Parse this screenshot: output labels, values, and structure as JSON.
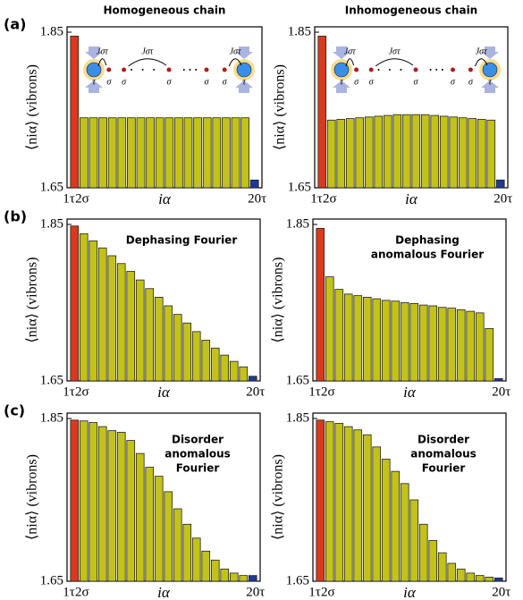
{
  "chart_data": [
    {
      "type": "bar",
      "panel_label": "(a)",
      "title": "Homogeneous chain",
      "categories": [
        "1τ",
        "2σ",
        null,
        null,
        null,
        null,
        null,
        null,
        null,
        null,
        null,
        null,
        null,
        null,
        null,
        null,
        null,
        null,
        null,
        "20τ"
      ],
      "values": [
        1.845,
        1.74,
        1.74,
        1.74,
        1.74,
        1.74,
        1.74,
        1.74,
        1.74,
        1.74,
        1.74,
        1.74,
        1.74,
        1.74,
        1.74,
        1.74,
        1.74,
        1.74,
        1.74,
        1.66
      ],
      "colors": [
        "#d93a1c",
        "#c2c21a",
        "#c2c21a",
        "#c2c21a",
        "#c2c21a",
        "#c2c21a",
        "#c2c21a",
        "#c2c21a",
        "#c2c21a",
        "#c2c21a",
        "#c2c21a",
        "#c2c21a",
        "#c2c21a",
        "#c2c21a",
        "#c2c21a",
        "#c2c21a",
        "#c2c21a",
        "#c2c21a",
        "#c2c21a",
        "#1f3a93"
      ],
      "xlabel": "iα",
      "ylabel": "⟨niα⟩ (vibrons)",
      "ylim": [
        1.65,
        1.85
      ],
      "yticks": [
        1.65,
        1.85
      ],
      "inset": {
        "coupling": "Jστ",
        "site_labels": [
          "τ",
          "σ",
          "σ",
          "σ",
          "σ",
          "σ",
          "τ"
        ]
      }
    },
    {
      "type": "bar",
      "title": "Inhomogeneous chain",
      "categories": [
        "1τ",
        "2σ",
        null,
        null,
        null,
        null,
        null,
        null,
        null,
        null,
        null,
        null,
        null,
        null,
        null,
        null,
        null,
        null,
        null,
        "20τ"
      ],
      "values": [
        1.845,
        1.737,
        1.738,
        1.739,
        1.74,
        1.741,
        1.742,
        1.743,
        1.744,
        1.744,
        1.744,
        1.744,
        1.743,
        1.742,
        1.741,
        1.74,
        1.739,
        1.738,
        1.737,
        1.66
      ],
      "colors": [
        "#d93a1c",
        "#c2c21a",
        "#c2c21a",
        "#c2c21a",
        "#c2c21a",
        "#c2c21a",
        "#c2c21a",
        "#c2c21a",
        "#c2c21a",
        "#c2c21a",
        "#c2c21a",
        "#c2c21a",
        "#c2c21a",
        "#c2c21a",
        "#c2c21a",
        "#c2c21a",
        "#c2c21a",
        "#c2c21a",
        "#c2c21a",
        "#1f3a93"
      ],
      "xlabel": "iα",
      "ylabel": "⟨niα⟩ (vibrons)",
      "ylim": [
        1.65,
        1.85
      ],
      "yticks": [
        1.65,
        1.85
      ],
      "inset": {
        "coupling": "Jστ",
        "site_labels": [
          "τ",
          "σ",
          "σ",
          "σ",
          "σ",
          "σ",
          "τ"
        ]
      }
    },
    {
      "type": "bar",
      "panel_label": "(b)",
      "categories": [
        "1τ",
        "2σ",
        null,
        null,
        null,
        null,
        null,
        null,
        null,
        null,
        null,
        null,
        null,
        null,
        null,
        null,
        null,
        null,
        null,
        "20τ"
      ],
      "values": [
        1.848,
        1.838,
        1.829,
        1.82,
        1.81,
        1.8,
        1.79,
        1.779,
        1.768,
        1.757,
        1.746,
        1.735,
        1.724,
        1.713,
        1.702,
        1.692,
        1.683,
        1.675,
        1.668,
        1.656
      ],
      "colors": [
        "#d93a1c",
        "#c2c21a",
        "#c2c21a",
        "#c2c21a",
        "#c2c21a",
        "#c2c21a",
        "#c2c21a",
        "#c2c21a",
        "#c2c21a",
        "#c2c21a",
        "#c2c21a",
        "#c2c21a",
        "#c2c21a",
        "#c2c21a",
        "#c2c21a",
        "#c2c21a",
        "#c2c21a",
        "#c2c21a",
        "#c2c21a",
        "#1f3a93"
      ],
      "xlabel": "iα",
      "ylabel": "⟨niα⟩ (vibrons)",
      "ylim": [
        1.65,
        1.85
      ],
      "yticks": [
        1.65,
        1.85
      ],
      "annotation": [
        "Dephasing Fourier"
      ]
    },
    {
      "type": "bar",
      "categories": [
        "1τ",
        "2σ",
        null,
        null,
        null,
        null,
        null,
        null,
        null,
        null,
        null,
        null,
        null,
        null,
        null,
        null,
        null,
        null,
        null,
        "20τ"
      ],
      "values": [
        1.845,
        1.783,
        1.767,
        1.761,
        1.759,
        1.757,
        1.755,
        1.753,
        1.752,
        1.75,
        1.749,
        1.747,
        1.746,
        1.744,
        1.743,
        1.741,
        1.739,
        1.737,
        1.717,
        1.653
      ],
      "colors": [
        "#d93a1c",
        "#c2c21a",
        "#c2c21a",
        "#c2c21a",
        "#c2c21a",
        "#c2c21a",
        "#c2c21a",
        "#c2c21a",
        "#c2c21a",
        "#c2c21a",
        "#c2c21a",
        "#c2c21a",
        "#c2c21a",
        "#c2c21a",
        "#c2c21a",
        "#c2c21a",
        "#c2c21a",
        "#c2c21a",
        "#c2c21a",
        "#1f3a93"
      ],
      "xlabel": "iα",
      "ylabel": "⟨niα⟩ (vibrons)",
      "ylim": [
        1.65,
        1.85
      ],
      "yticks": [
        1.65,
        1.85
      ],
      "annotation": [
        "Dephasing",
        "anomalous Fourier"
      ]
    },
    {
      "type": "bar",
      "panel_label": "(c)",
      "categories": [
        "1τ",
        "2σ",
        null,
        null,
        null,
        null,
        null,
        null,
        null,
        null,
        null,
        null,
        null,
        null,
        null,
        null,
        null,
        null,
        null,
        "20τ"
      ],
      "values": [
        1.848,
        1.847,
        1.845,
        1.84,
        1.835,
        1.833,
        1.823,
        1.807,
        1.79,
        1.779,
        1.76,
        1.739,
        1.72,
        1.703,
        1.687,
        1.676,
        1.665,
        1.66,
        1.657,
        1.657
      ],
      "colors": [
        "#d93a1c",
        "#c2c21a",
        "#c2c21a",
        "#c2c21a",
        "#c2c21a",
        "#c2c21a",
        "#c2c21a",
        "#c2c21a",
        "#c2c21a",
        "#c2c21a",
        "#c2c21a",
        "#c2c21a",
        "#c2c21a",
        "#c2c21a",
        "#c2c21a",
        "#c2c21a",
        "#c2c21a",
        "#c2c21a",
        "#c2c21a",
        "#1f3a93"
      ],
      "xlabel": "iα",
      "ylabel": "⟨niα⟩ (vibrons)",
      "ylim": [
        1.65,
        1.85
      ],
      "yticks": [
        1.65,
        1.85
      ],
      "annotation": [
        "Disorder",
        "anomalous",
        "Fourier"
      ]
    },
    {
      "type": "bar",
      "categories": [
        "1τ",
        "2σ",
        null,
        null,
        null,
        null,
        null,
        null,
        null,
        null,
        null,
        null,
        null,
        null,
        null,
        null,
        null,
        null,
        null,
        "20τ"
      ],
      "values": [
        1.848,
        1.846,
        1.844,
        1.84,
        1.836,
        1.83,
        1.815,
        1.8,
        1.785,
        1.77,
        1.75,
        1.72,
        1.7,
        1.685,
        1.672,
        1.665,
        1.66,
        1.657,
        1.655,
        1.654
      ],
      "colors": [
        "#d93a1c",
        "#c2c21a",
        "#c2c21a",
        "#c2c21a",
        "#c2c21a",
        "#c2c21a",
        "#c2c21a",
        "#c2c21a",
        "#c2c21a",
        "#c2c21a",
        "#c2c21a",
        "#c2c21a",
        "#c2c21a",
        "#c2c21a",
        "#c2c21a",
        "#c2c21a",
        "#c2c21a",
        "#c2c21a",
        "#c2c21a",
        "#1f3a93"
      ],
      "xlabel": "iα",
      "ylabel": "⟨niα⟩ (vibrons)",
      "ylim": [
        1.65,
        1.85
      ],
      "yticks": [
        1.65,
        1.85
      ],
      "annotation": [
        "Disorder",
        "anomalous",
        "Fourier"
      ]
    }
  ]
}
